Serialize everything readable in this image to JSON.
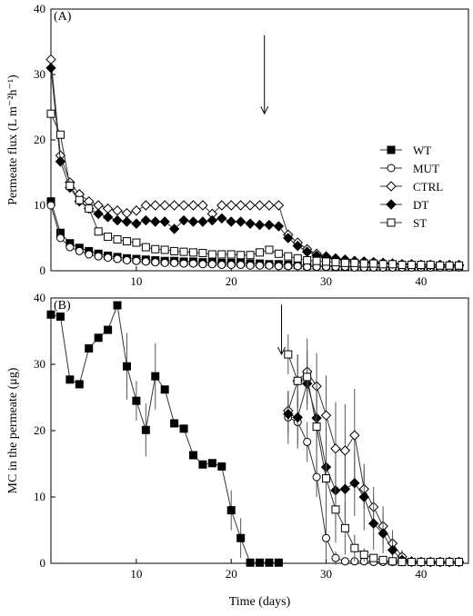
{
  "chart_data": [
    {
      "type": "line",
      "panel_label": "(A)",
      "title": "",
      "xlabel": "",
      "ylabel": "Permeate flux (L m⁻²h⁻¹)",
      "xlim": [
        1,
        45
      ],
      "ylim": [
        0,
        40
      ],
      "xticks": [
        10,
        20,
        30,
        40
      ],
      "yticks": [
        0,
        10,
        20,
        30,
        40
      ],
      "legend_position": "right",
      "annotation": {
        "type": "arrow",
        "x": 23.5,
        "y_top": 36,
        "y_bottom": 24
      },
      "series": [
        {
          "name": "WT",
          "marker": "square",
          "fill": "#000000",
          "x": [
            1,
            2,
            3,
            4,
            5,
            6,
            7,
            8,
            9,
            10,
            11,
            12,
            13,
            14,
            15,
            16,
            17,
            18,
            19,
            20,
            21,
            22,
            23,
            24,
            25,
            26,
            27,
            28,
            29,
            30,
            31,
            32,
            33,
            34,
            35,
            36,
            37,
            38,
            39,
            40,
            41,
            42,
            43,
            44
          ],
          "y": [
            10.6,
            5.8,
            4.2,
            3.5,
            3.0,
            2.6,
            2.3,
            2.1,
            1.9,
            1.8,
            1.7,
            1.6,
            1.5,
            1.5,
            1.4,
            1.4,
            1.3,
            1.3,
            1.2,
            1.2,
            1.2,
            1.1,
            1.1,
            1.0,
            1.0,
            0.9,
            0.9,
            0.8,
            0.8,
            0.8,
            0.7,
            0.7,
            0.7,
            0.7,
            0.6,
            0.6,
            0.6,
            0.6,
            0.6,
            0.6,
            0.6,
            0.6,
            0.6,
            0.6
          ]
        },
        {
          "name": "MUT",
          "marker": "circle",
          "fill": "#ffffff",
          "x": [
            1,
            2,
            3,
            4,
            5,
            6,
            7,
            8,
            9,
            10,
            11,
            12,
            13,
            14,
            15,
            16,
            17,
            18,
            19,
            20,
            21,
            22,
            23,
            24,
            25,
            26,
            27,
            28,
            29,
            30,
            31,
            32,
            33,
            34,
            35,
            36,
            37,
            38,
            39,
            40,
            41,
            42,
            43,
            44
          ],
          "y": [
            10.0,
            5.0,
            3.6,
            3.0,
            2.5,
            2.2,
            2.0,
            1.8,
            1.6,
            1.5,
            1.4,
            1.3,
            1.2,
            1.2,
            1.1,
            1.1,
            1.0,
            1.0,
            0.9,
            0.9,
            0.9,
            0.8,
            0.8,
            0.8,
            0.7,
            0.7,
            0.7,
            0.6,
            0.6,
            0.6,
            0.6,
            0.6,
            0.5,
            0.5,
            0.5,
            0.5,
            0.5,
            0.5,
            0.5,
            0.5,
            0.5,
            0.5,
            0.5,
            0.5
          ]
        },
        {
          "name": "CTRL",
          "marker": "diamond",
          "fill": "#ffffff",
          "x": [
            1,
            2,
            3,
            4,
            5,
            6,
            7,
            8,
            9,
            10,
            11,
            12,
            13,
            14,
            15,
            16,
            17,
            18,
            19,
            20,
            21,
            22,
            23,
            24,
            25,
            26,
            27,
            28,
            29,
            30,
            31,
            32,
            33,
            34,
            35,
            36,
            37,
            38,
            39,
            40,
            41,
            42,
            43,
            44
          ],
          "y": [
            32.3,
            17.6,
            13.5,
            11.7,
            10.6,
            10.0,
            9.5,
            9.2,
            8.8,
            9.2,
            10.0,
            10.0,
            10.0,
            10.0,
            10.0,
            10.0,
            10.0,
            8.7,
            10.0,
            10.0,
            10.0,
            10.0,
            10.0,
            10.0,
            10.0,
            5.5,
            4.3,
            3.3,
            2.6,
            2.2,
            1.9,
            1.7,
            1.5,
            1.4,
            1.3,
            1.2,
            1.1,
            1.0,
            1.0,
            0.9,
            0.9,
            0.9,
            0.9,
            0.9
          ]
        },
        {
          "name": "DT",
          "marker": "diamond",
          "fill": "#000000",
          "x": [
            1,
            2,
            3,
            4,
            5,
            6,
            7,
            8,
            9,
            10,
            11,
            12,
            13,
            14,
            15,
            16,
            17,
            18,
            19,
            20,
            21,
            22,
            23,
            24,
            25,
            26,
            27,
            28,
            29,
            30,
            31,
            32,
            33,
            34,
            35,
            36,
            37,
            38,
            39,
            40,
            41,
            42,
            43,
            44
          ],
          "y": [
            31.0,
            16.7,
            12.7,
            10.6,
            9.5,
            8.7,
            8.2,
            7.7,
            7.5,
            7.2,
            7.7,
            7.5,
            7.5,
            6.4,
            7.7,
            7.5,
            7.5,
            7.7,
            8.0,
            7.5,
            7.5,
            7.2,
            7.0,
            7.0,
            6.8,
            5.0,
            3.8,
            2.9,
            2.3,
            2.0,
            1.8,
            1.6,
            1.5,
            1.4,
            1.3,
            1.2,
            1.1,
            1.0,
            1.0,
            0.9,
            0.9,
            0.9,
            0.9,
            0.8
          ]
        },
        {
          "name": "ST",
          "marker": "square",
          "fill": "#ffffff",
          "x": [
            1,
            2,
            3,
            4,
            5,
            6,
            7,
            8,
            9,
            10,
            11,
            12,
            13,
            14,
            15,
            16,
            17,
            18,
            19,
            20,
            21,
            22,
            23,
            24,
            25,
            26,
            27,
            28,
            29,
            30,
            31,
            32,
            33,
            34,
            35,
            36,
            37,
            38,
            39,
            40,
            41,
            42,
            43,
            44
          ],
          "y": [
            24.0,
            20.8,
            13.0,
            10.8,
            9.5,
            6.0,
            5.2,
            4.8,
            4.5,
            4.3,
            3.6,
            3.3,
            3.2,
            3.0,
            2.9,
            2.8,
            2.7,
            2.5,
            2.5,
            2.5,
            2.4,
            2.4,
            2.8,
            3.2,
            2.6,
            2.2,
            1.9,
            1.6,
            1.5,
            1.4,
            1.3,
            1.2,
            1.2,
            1.1,
            1.1,
            1.0,
            1.0,
            0.9,
            0.9,
            0.9,
            0.9,
            0.8,
            0.8,
            0.8
          ]
        }
      ]
    },
    {
      "type": "line",
      "panel_label": "(B)",
      "title": "",
      "xlabel": "Time (days)",
      "ylabel": "MC in the permeate (μg)",
      "xlim": [
        1,
        45
      ],
      "ylim": [
        0,
        40
      ],
      "xticks": [
        10,
        20,
        30,
        40
      ],
      "yticks": [
        0,
        10,
        20,
        30,
        40
      ],
      "annotation": {
        "type": "arrow",
        "x": 25.3,
        "y_top": 39,
        "y_bottom": 31.5
      },
      "series": [
        {
          "name": "WT",
          "marker": "square",
          "fill": "#000000",
          "x": [
            1,
            2,
            3,
            4,
            5,
            6,
            7,
            8,
            9,
            10,
            11,
            12,
            13,
            14,
            15,
            16,
            17,
            18,
            19,
            20,
            21,
            22,
            23,
            24,
            25
          ],
          "y": [
            37.5,
            37.2,
            27.7,
            27.0,
            32.4,
            34.0,
            35.2,
            38.9,
            29.7,
            24.5,
            20.1,
            28.2,
            26.2,
            21.1,
            20.3,
            16.3,
            14.9,
            15.1,
            14.6,
            8.0,
            3.8,
            0.1,
            0.1,
            0.1,
            0.1
          ],
          "err": [
            0,
            0,
            0,
            0,
            0,
            0,
            0,
            0,
            5,
            3,
            4,
            5,
            0,
            0,
            0,
            0,
            0,
            0,
            0,
            3,
            3,
            0,
            0,
            0,
            0
          ]
        },
        {
          "name": "MUT",
          "marker": "circle",
          "fill": "#ffffff",
          "x": [
            26,
            27,
            28,
            29,
            30,
            31,
            32,
            33,
            34,
            35,
            36,
            37,
            38,
            39,
            40,
            41,
            42,
            43,
            44
          ],
          "y": [
            22.0,
            21.3,
            18.3,
            13.0,
            3.8,
            0.8,
            0.3,
            0.3,
            0.3,
            0.2,
            0.2,
            0.2,
            0.2,
            0.2,
            0.2,
            0.2,
            0.2,
            0.2,
            0.2
          ],
          "err": [
            4,
            4,
            3,
            3,
            3,
            1,
            0,
            0,
            0,
            0,
            0,
            0,
            0,
            0,
            0,
            0,
            0,
            0,
            0
          ]
        },
        {
          "name": "CTRL",
          "marker": "diamond",
          "fill": "#ffffff",
          "x": [
            26,
            27,
            28,
            29,
            30,
            31,
            32,
            33,
            34,
            35,
            36,
            37,
            38,
            39,
            40,
            41,
            42,
            43,
            44
          ],
          "y": [
            23.0,
            27.5,
            28.9,
            26.7,
            22.3,
            17.3,
            17.0,
            19.3,
            11.2,
            8.5,
            5.6,
            3.0,
            1.0,
            0.3,
            0.2,
            0.2,
            0.2,
            0.2,
            0.2
          ],
          "err": [
            3,
            4,
            5,
            5,
            6,
            7,
            7,
            7,
            3,
            3,
            3,
            2,
            1,
            0,
            0,
            0,
            0,
            0,
            0
          ]
        },
        {
          "name": "DT",
          "marker": "diamond",
          "fill": "#000000",
          "x": [
            26,
            27,
            28,
            29,
            30,
            31,
            32,
            33,
            34,
            35,
            36,
            37,
            38,
            39,
            40,
            41,
            42,
            43,
            44
          ],
          "y": [
            22.5,
            22.0,
            27.1,
            21.9,
            14.5,
            11.0,
            11.2,
            12.1,
            10.0,
            6.0,
            4.5,
            2.0,
            0.5,
            0.2,
            0.2,
            0.2,
            0.2,
            0.2,
            0.2
          ],
          "err": [
            3,
            4,
            4,
            5,
            5,
            5,
            5,
            5,
            5,
            4,
            3,
            2,
            1,
            0,
            0,
            0,
            0,
            0,
            0
          ]
        },
        {
          "name": "ST",
          "marker": "square",
          "fill": "#ffffff",
          "x": [
            26,
            27,
            28,
            29,
            30,
            31,
            32,
            33,
            34,
            35,
            36,
            37,
            38,
            39,
            40,
            41,
            42,
            43,
            44
          ],
          "y": [
            31.5,
            27.5,
            28.1,
            20.6,
            12.8,
            8.1,
            5.3,
            2.3,
            1.3,
            0.8,
            0.5,
            0.3,
            0.2,
            0.2,
            0.2,
            0.2,
            0.2,
            0.2,
            0.2
          ],
          "err": [
            3,
            4,
            4,
            7,
            8,
            5,
            4,
            2,
            1,
            0,
            0,
            0,
            0,
            0,
            0,
            0,
            0,
            0,
            0
          ]
        }
      ]
    }
  ]
}
